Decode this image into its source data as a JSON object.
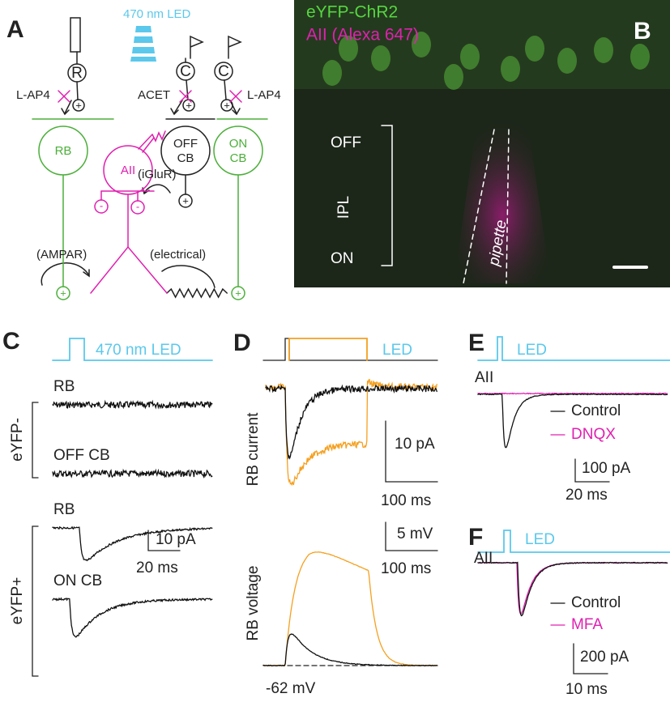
{
  "panel_a": {
    "letter": "A",
    "led": "470 nm LED",
    "rod": "R",
    "cones": [
      "C",
      "C"
    ],
    "drugs": [
      "L-AP4",
      "ACET",
      "L-AP4"
    ],
    "rb": "RB",
    "aii": "AII",
    "off_cb": [
      "OFF",
      "CB"
    ],
    "on_cb": [
      "ON",
      "CB"
    ],
    "synapses": [
      "(iGluR)",
      "(AMPAR)",
      "(electrical)"
    ],
    "signs": [
      "+",
      "+",
      "+",
      "+",
      "-",
      "-",
      "+",
      "+"
    ]
  },
  "panel_b": {
    "letter": "B",
    "labels": [
      "eYFP-ChR2",
      "AII (Alexa 647)"
    ],
    "layers": [
      "OFF",
      "IPL",
      "ON"
    ],
    "pipette": "pipette"
  },
  "panel_c": {
    "letter": "C",
    "led": "470 nm LED",
    "groups": [
      "eYFP-",
      "eYFP+"
    ],
    "cells": [
      "RB",
      "OFF CB",
      "RB",
      "ON CB"
    ],
    "scale": [
      "10 pA",
      "20 ms"
    ]
  },
  "panel_d": {
    "letter": "D",
    "led": "LED",
    "ylabels": [
      "RB current",
      "RB voltage"
    ],
    "current_scale": [
      "10 pA",
      "100 ms"
    ],
    "voltage_scale": [
      "5 mV",
      "100 ms"
    ],
    "baseline": "-62 mV"
  },
  "panel_e": {
    "letter": "E",
    "led": "LED",
    "cell": "AII",
    "legend": [
      "Control",
      "DNQX"
    ],
    "scale": [
      "100 pA",
      "20 ms"
    ]
  },
  "panel_f": {
    "letter": "F",
    "led": "LED",
    "cell": "AII",
    "legend": [
      "Control",
      "MFA"
    ],
    "scale": [
      "200 pA",
      "10 ms"
    ]
  }
}
